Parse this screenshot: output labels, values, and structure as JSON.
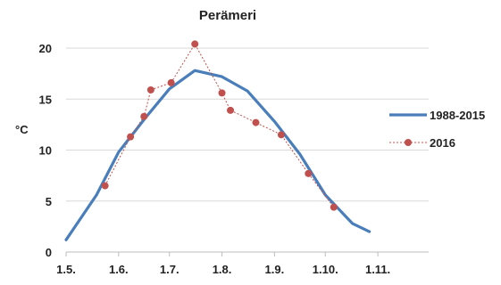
{
  "chart_data": {
    "type": "line",
    "title": "Perämeri",
    "ylabel": "°C",
    "xlabel": "",
    "ylim": [
      0,
      20
    ],
    "yticks": [
      0,
      5,
      10,
      15,
      20
    ],
    "xlim": [
      121,
      335
    ],
    "xticks": [
      {
        "label": "1.5.",
        "x": 121
      },
      {
        "label": "1.6.",
        "x": 152
      },
      {
        "label": "1.7.",
        "x": 182
      },
      {
        "label": "1.8.",
        "x": 213
      },
      {
        "label": "1.9.",
        "x": 244
      },
      {
        "label": "1.10.",
        "x": 274
      },
      {
        "label": "1.11.",
        "x": 305
      }
    ],
    "legend_position": "right",
    "series": [
      {
        "name": "1988-2015",
        "style": "solid-line",
        "color": "#4a7ebb",
        "points": [
          {
            "x": 121,
            "y": 1.2
          },
          {
            "x": 139,
            "y": 5.6
          },
          {
            "x": 152,
            "y": 9.8
          },
          {
            "x": 168,
            "y": 13.2
          },
          {
            "x": 182,
            "y": 16.0
          },
          {
            "x": 197,
            "y": 17.8
          },
          {
            "x": 213,
            "y": 17.2
          },
          {
            "x": 228,
            "y": 15.8
          },
          {
            "x": 244,
            "y": 12.8
          },
          {
            "x": 259,
            "y": 9.6
          },
          {
            "x": 274,
            "y": 5.6
          },
          {
            "x": 290,
            "y": 2.8
          },
          {
            "x": 300,
            "y": 2.0
          }
        ]
      },
      {
        "name": "2016",
        "style": "dotted-markers",
        "color": "#c0504d",
        "points": [
          {
            "x": 144,
            "y": 6.5
          },
          {
            "x": 159,
            "y": 11.3
          },
          {
            "x": 167,
            "y": 13.3
          },
          {
            "x": 171,
            "y": 15.9
          },
          {
            "x": 183,
            "y": 16.6
          },
          {
            "x": 197,
            "y": 20.4
          },
          {
            "x": 213,
            "y": 15.6
          },
          {
            "x": 218,
            "y": 13.9
          },
          {
            "x": 233,
            "y": 12.7
          },
          {
            "x": 248,
            "y": 11.5
          },
          {
            "x": 264,
            "y": 7.7
          },
          {
            "x": 279,
            "y": 4.4
          }
        ]
      }
    ]
  }
}
